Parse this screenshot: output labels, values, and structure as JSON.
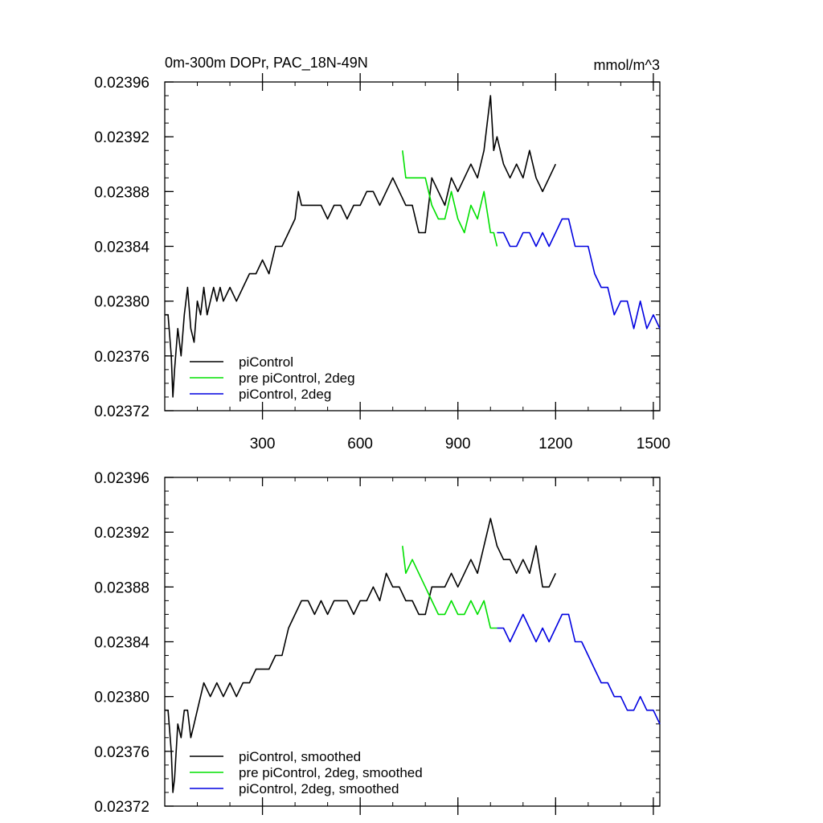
{
  "chart_data": [
    {
      "type": "line",
      "title": "0m-300m DOPr, PAC_18N-49N",
      "units": "mmol/m^3",
      "xlabel": "",
      "ylabel": "",
      "xlim": [
        0,
        1520
      ],
      "ylim": [
        0.02372,
        0.02396
      ],
      "xticks": [
        300,
        600,
        900,
        1200,
        1500
      ],
      "x_tick_labels": [
        "300",
        "600",
        "900",
        "1200",
        "1500"
      ],
      "yticks": [
        0.02372,
        0.02376,
        0.0238,
        0.02384,
        0.02388,
        0.02392,
        0.02396
      ],
      "y_tick_labels": [
        "0.02372",
        "0.02376",
        "0.02380",
        "0.02384",
        "0.02388",
        "0.02392",
        "0.02396"
      ],
      "legend": "bottom-left",
      "series": [
        {
          "name": "piControl",
          "color": "#000000",
          "x": [
            1,
            10,
            20,
            25,
            30,
            40,
            50,
            60,
            70,
            80,
            90,
            100,
            110,
            120,
            130,
            140,
            150,
            160,
            170,
            180,
            200,
            220,
            240,
            260,
            280,
            300,
            320,
            340,
            360,
            380,
            400,
            410,
            420,
            440,
            460,
            480,
            500,
            520,
            540,
            560,
            580,
            600,
            620,
            640,
            660,
            680,
            700,
            720,
            740,
            760,
            780,
            800,
            810,
            820,
            840,
            860,
            880,
            900,
            920,
            940,
            960,
            980,
            990,
            1000,
            1010,
            1020,
            1040,
            1060,
            1080,
            1100,
            1120,
            1140,
            1160,
            1180,
            1200
          ],
          "y": [
            0.02379,
            0.02379,
            0.02376,
            0.02373,
            0.02375,
            0.02378,
            0.02376,
            0.02379,
            0.02381,
            0.02378,
            0.02377,
            0.0238,
            0.02379,
            0.02381,
            0.02379,
            0.0238,
            0.02381,
            0.0238,
            0.02381,
            0.0238,
            0.02381,
            0.0238,
            0.02381,
            0.02382,
            0.02382,
            0.02383,
            0.02382,
            0.02384,
            0.02384,
            0.02385,
            0.02386,
            0.02388,
            0.02387,
            0.02387,
            0.02387,
            0.02387,
            0.02386,
            0.02387,
            0.02387,
            0.02386,
            0.02387,
            0.02387,
            0.02388,
            0.02388,
            0.02387,
            0.02388,
            0.02389,
            0.02388,
            0.02387,
            0.02387,
            0.02385,
            0.02385,
            0.02387,
            0.02389,
            0.02388,
            0.02387,
            0.02389,
            0.02388,
            0.02389,
            0.0239,
            0.02389,
            0.02391,
            0.02393,
            0.02395,
            0.02391,
            0.02392,
            0.0239,
            0.02389,
            0.0239,
            0.02389,
            0.02391,
            0.02389,
            0.02388,
            0.02389,
            0.0239
          ]
        },
        {
          "name": "pre piControl, 2deg",
          "color": "#00e000",
          "x": [
            730,
            740,
            760,
            780,
            800,
            820,
            840,
            860,
            880,
            900,
            920,
            940,
            960,
            980,
            1000,
            1010,
            1020
          ],
          "y": [
            0.02391,
            0.02389,
            0.02389,
            0.02389,
            0.02389,
            0.02387,
            0.02386,
            0.02386,
            0.02388,
            0.02386,
            0.02385,
            0.02387,
            0.02386,
            0.02388,
            0.02385,
            0.02385,
            0.02384
          ]
        },
        {
          "name": "piControl, 2deg",
          "color": "#0000e0",
          "x": [
            1020,
            1040,
            1060,
            1080,
            1100,
            1120,
            1140,
            1160,
            1180,
            1200,
            1220,
            1240,
            1260,
            1280,
            1300,
            1320,
            1340,
            1360,
            1380,
            1400,
            1420,
            1440,
            1460,
            1480,
            1500,
            1520
          ],
          "y": [
            0.02385,
            0.02385,
            0.02384,
            0.02384,
            0.02385,
            0.02385,
            0.02384,
            0.02385,
            0.02384,
            0.02385,
            0.02386,
            0.02386,
            0.02384,
            0.02384,
            0.02384,
            0.02382,
            0.02381,
            0.02381,
            0.02379,
            0.0238,
            0.0238,
            0.02378,
            0.0238,
            0.02378,
            0.02379,
            0.02378
          ]
        }
      ]
    },
    {
      "type": "line",
      "title": "",
      "xlabel": "",
      "ylabel": "",
      "xlim": [
        0,
        1520
      ],
      "ylim": [
        0.02372,
        0.02396
      ],
      "xticks": [
        300,
        600,
        900,
        1200,
        1500
      ],
      "yticks": [
        0.02372,
        0.02376,
        0.0238,
        0.02384,
        0.02388,
        0.02392,
        0.02396
      ],
      "y_tick_labels": [
        "0.02372",
        "0.02376",
        "0.02380",
        "0.02384",
        "0.02388",
        "0.02392",
        "0.02396"
      ],
      "legend": "bottom-left",
      "series": [
        {
          "name": "piControl, smoothed",
          "color": "#000000",
          "x": [
            1,
            10,
            20,
            25,
            30,
            40,
            50,
            60,
            70,
            80,
            90,
            100,
            120,
            140,
            160,
            180,
            200,
            220,
            240,
            260,
            280,
            300,
            320,
            340,
            360,
            380,
            400,
            420,
            440,
            460,
            480,
            500,
            520,
            540,
            560,
            580,
            600,
            620,
            640,
            660,
            680,
            700,
            720,
            740,
            760,
            780,
            800,
            820,
            840,
            860,
            880,
            900,
            920,
            940,
            960,
            980,
            1000,
            1020,
            1040,
            1060,
            1080,
            1100,
            1120,
            1140,
            1160,
            1180,
            1200
          ],
          "y": [
            0.02379,
            0.02379,
            0.02376,
            0.02373,
            0.02374,
            0.02378,
            0.02377,
            0.02379,
            0.02379,
            0.02377,
            0.02378,
            0.02379,
            0.02381,
            0.0238,
            0.02381,
            0.0238,
            0.02381,
            0.0238,
            0.02381,
            0.02381,
            0.02382,
            0.02382,
            0.02382,
            0.02383,
            0.02383,
            0.02385,
            0.02386,
            0.02387,
            0.02387,
            0.02386,
            0.02387,
            0.02386,
            0.02387,
            0.02387,
            0.02387,
            0.02386,
            0.02387,
            0.02387,
            0.02388,
            0.02387,
            0.02389,
            0.02388,
            0.02388,
            0.02387,
            0.02387,
            0.02386,
            0.02386,
            0.02388,
            0.02388,
            0.02388,
            0.02389,
            0.02388,
            0.02389,
            0.0239,
            0.02389,
            0.02391,
            0.02393,
            0.02391,
            0.0239,
            0.0239,
            0.02389,
            0.0239,
            0.02389,
            0.02391,
            0.02388,
            0.02388,
            0.02389
          ]
        },
        {
          "name": "pre piControl, 2deg, smoothed",
          "color": "#00e000",
          "x": [
            730,
            740,
            760,
            780,
            800,
            820,
            840,
            860,
            880,
            900,
            920,
            940,
            960,
            980,
            1000,
            1010,
            1020
          ],
          "y": [
            0.02391,
            0.02389,
            0.0239,
            0.02389,
            0.02388,
            0.02387,
            0.02386,
            0.02386,
            0.02387,
            0.02386,
            0.02386,
            0.02387,
            0.02386,
            0.02387,
            0.02385,
            0.02385,
            0.02385
          ]
        },
        {
          "name": "piControl, 2deg, smoothed",
          "color": "#0000e0",
          "x": [
            1020,
            1040,
            1060,
            1080,
            1100,
            1120,
            1140,
            1160,
            1180,
            1200,
            1220,
            1240,
            1260,
            1280,
            1300,
            1320,
            1340,
            1360,
            1380,
            1400,
            1420,
            1440,
            1460,
            1480,
            1500,
            1520
          ],
          "y": [
            0.02385,
            0.02385,
            0.02384,
            0.02385,
            0.02386,
            0.02385,
            0.02384,
            0.02385,
            0.02384,
            0.02385,
            0.02386,
            0.02386,
            0.02384,
            0.02384,
            0.02383,
            0.02382,
            0.02381,
            0.02381,
            0.0238,
            0.0238,
            0.02379,
            0.02379,
            0.0238,
            0.02379,
            0.02379,
            0.02378
          ]
        }
      ]
    }
  ]
}
